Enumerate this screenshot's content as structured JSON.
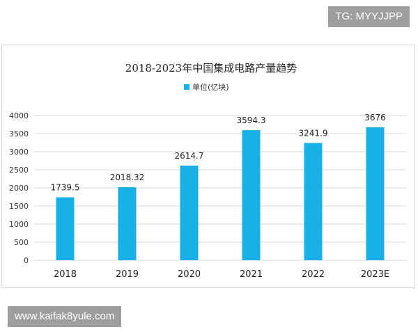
{
  "watermarks": {
    "top": "TG: MYYJJPP",
    "bottom": "www.kaifak8yule.com"
  },
  "chart_data": {
    "type": "bar",
    "title": "2018-2023年中国集成电路产量趋势",
    "legend": {
      "placement": "top",
      "entries": [
        "单位(亿块)"
      ]
    },
    "categories": [
      "2018",
      "2019",
      "2020",
      "2021",
      "2022",
      "2023E"
    ],
    "series": [
      {
        "name": "单位(亿块)",
        "values": [
          1739.5,
          2018.32,
          2614.7,
          3594.3,
          3241.9,
          3676
        ],
        "labels": [
          "1739.5",
          "2018.32",
          "2614.7",
          "3594.3",
          "3241.9",
          "3676"
        ]
      }
    ],
    "ylim": [
      0,
      4000
    ],
    "yticks": [
      "0",
      "500",
      "1000",
      "1500",
      "2000",
      "2500",
      "3000",
      "3500",
      "4000"
    ],
    "ytick_values": [
      0,
      500,
      1000,
      1500,
      2000,
      2500,
      3000,
      3500,
      4000
    ],
    "grid": true,
    "xlabel": "",
    "ylabel": "",
    "colors": {
      "bar": "#18b0e6",
      "grid": "#d9d9d9",
      "text": "#222222",
      "axis_text": "#333333"
    }
  }
}
